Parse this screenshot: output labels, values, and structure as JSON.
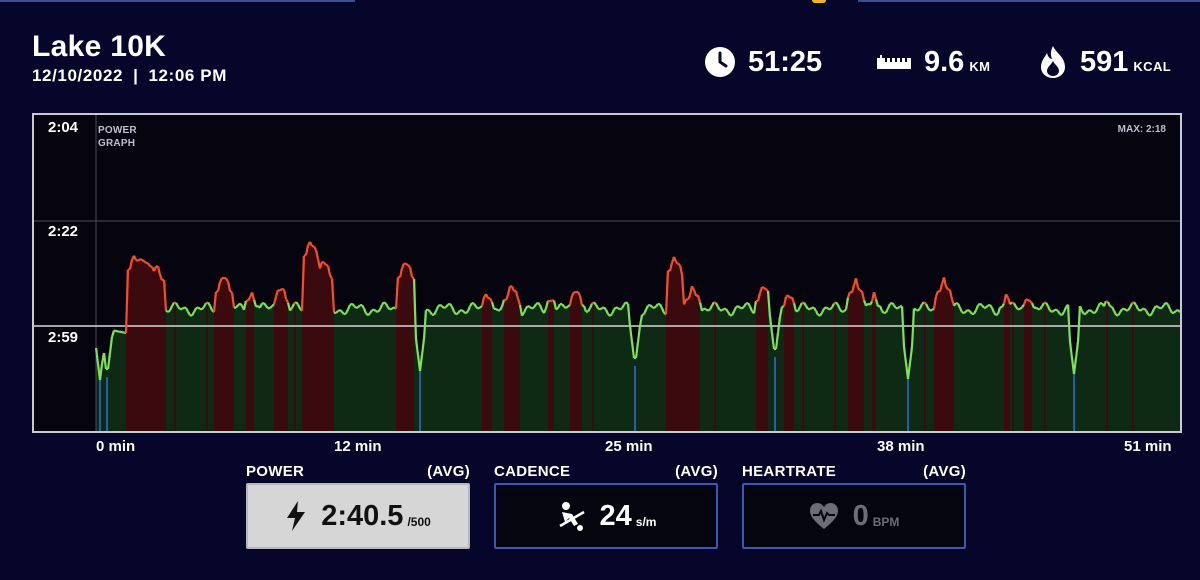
{
  "workout": {
    "title": "Lake 10K",
    "date": "12/10/2022",
    "separator": "|",
    "time": "12:06 PM"
  },
  "stats": {
    "duration": {
      "value": "51:25",
      "icon": "clock-icon"
    },
    "distance": {
      "value": "9.6",
      "unit": "KM",
      "icon": "ruler-icon"
    },
    "calories": {
      "value": "591",
      "unit": "KCAL",
      "icon": "flame-icon"
    }
  },
  "graph": {
    "title": "POWER GRAPH",
    "max_label": "MAX: 2:18",
    "y_ticks": [
      "2:04",
      "2:22",
      "2:59"
    ],
    "x_ticks": [
      "0 min",
      "12 min",
      "25 min",
      "38 min",
      "51 min"
    ],
    "colors": {
      "above_avg_line": "#f0502a",
      "below_avg_line": "#7ee15a",
      "above_avg_fill": "#3a0a0e",
      "below_avg_fill": "#0f2a14",
      "dip_line": "#2f6fd6"
    }
  },
  "metrics": {
    "power": {
      "label": "POWER",
      "avg_label": "(AVG)",
      "value": "2:40.5",
      "unit": "/500",
      "icon": "lightning-icon"
    },
    "cadence": {
      "label": "CADENCE",
      "avg_label": "(AVG)",
      "value": "24",
      "unit": "s/m",
      "icon": "rowing-icon"
    },
    "heartrate": {
      "label": "HEARTRATE",
      "avg_label": "(AVG)",
      "value": "0",
      "unit": "BPM",
      "icon": "heart-icon"
    }
  },
  "colors": {
    "background": "#06062a",
    "accent_border": "#3c58b0",
    "selected_box": "#d6d6d6"
  }
}
